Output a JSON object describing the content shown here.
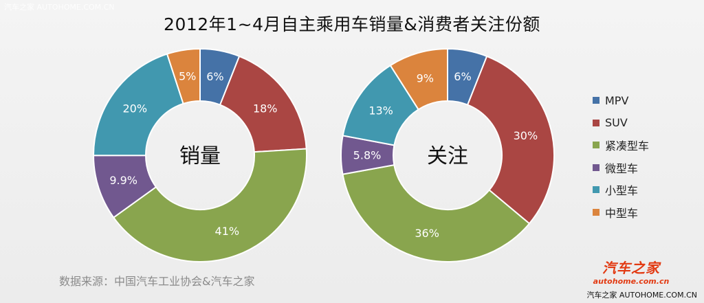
{
  "header": {
    "watermark": "汽车之家 AUTOHOME.COM.CN",
    "title": "2012年1~4月自主乘用车销量&消费者关注份额"
  },
  "chart_data": [
    {
      "type": "pie",
      "center_label": "销量",
      "categories": [
        "MPV",
        "SUV",
        "紧凑型车",
        "微型车",
        "小型车",
        "中型车"
      ],
      "values": [
        6,
        18,
        41,
        9.9,
        20,
        5
      ],
      "labels": [
        "6%",
        "18%",
        "41%",
        "9.9%",
        "20%",
        "5%"
      ]
    },
    {
      "type": "pie",
      "center_label": "关注",
      "categories": [
        "MPV",
        "SUV",
        "紧凑型车",
        "微型车",
        "小型车",
        "中型车"
      ],
      "values": [
        6,
        30,
        36,
        5.8,
        13,
        9
      ],
      "labels": [
        "6%",
        "30%",
        "36%",
        "5.8%",
        "13%",
        "9%"
      ]
    }
  ],
  "legend": [
    {
      "label": "MPV",
      "color": "#4572a7"
    },
    {
      "label": "SUV",
      "color": "#aa4643"
    },
    {
      "label": "紧凑型车",
      "color": "#89a54e"
    },
    {
      "label": "微型车",
      "color": "#71588f"
    },
    {
      "label": "小型车",
      "color": "#4198af"
    },
    {
      "label": "中型车",
      "color": "#db843d"
    }
  ],
  "footer": {
    "source": "数据来源：中国汽车工业协会&汽车之家",
    "brand_cn": "汽车之家",
    "brand_url": "autohome.com.cn",
    "watermark": "汽车之家 AUTOHOME.COM.CN"
  }
}
